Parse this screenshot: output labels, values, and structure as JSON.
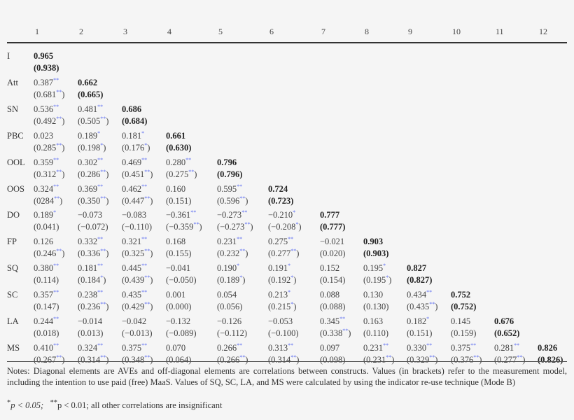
{
  "table": {
    "columns": [
      "1",
      "2",
      "3",
      "4",
      "5",
      "6",
      "7",
      "8",
      "9",
      "10",
      "11",
      "12"
    ],
    "rows": [
      {
        "label": "I",
        "cells": [
          [
            "0.965",
            "",
            "(0.938)",
            ""
          ]
        ]
      },
      {
        "label": "Att",
        "cells": [
          [
            "0.387",
            "**",
            "(0.681",
            "**"
          ],
          [
            "0.662",
            "",
            "(0.665)",
            ""
          ]
        ]
      },
      {
        "label": "SN",
        "cells": [
          [
            "0.536",
            "**",
            "(0.492",
            "**"
          ],
          [
            "0.481",
            "**",
            "(0.505",
            "**"
          ],
          [
            "0.686",
            "",
            "(0.684)",
            ""
          ]
        ]
      },
      {
        "label": "PBC",
        "cells": [
          [
            "0.023",
            "",
            "(0.285",
            "**"
          ],
          [
            "0.189",
            "*",
            "(0.198",
            "*"
          ],
          [
            "0.181",
            "*",
            "(0.176",
            "*"
          ],
          [
            "0.661",
            "",
            "(0.630)",
            ""
          ]
        ]
      },
      {
        "label": "OOL",
        "cells": [
          [
            "0.359",
            "**",
            "(0.312",
            "**"
          ],
          [
            "0.302",
            "**",
            "(0.286",
            "**"
          ],
          [
            "0.469",
            "**",
            "(0.451",
            "**"
          ],
          [
            "0.280",
            "**",
            "(0.275",
            "**"
          ],
          [
            "0.796",
            "",
            "(0.796)",
            ""
          ]
        ]
      },
      {
        "label": "OOS",
        "cells": [
          [
            "0.324",
            "**",
            "(0284",
            "**"
          ],
          [
            "0.369",
            "**",
            "(0.350",
            "**"
          ],
          [
            "0.462",
            "**",
            "(0.447",
            "**"
          ],
          [
            "0.160",
            "",
            "(0.151)",
            ""
          ],
          [
            "0.595",
            "**",
            "(0.596",
            "**"
          ],
          [
            "0.724",
            "",
            "(0.723)",
            ""
          ]
        ]
      },
      {
        "label": "DO",
        "cells": [
          [
            "0.189",
            "*",
            "(0.041)",
            ""
          ],
          [
            "−0.073",
            "",
            "(−0.072)",
            ""
          ],
          [
            "−0.083",
            "",
            "(−0.110)",
            ""
          ],
          [
            "−0.361",
            "**",
            "(−0.359",
            "**"
          ],
          [
            "−0.273",
            "**",
            "(−0.273",
            "**"
          ],
          [
            "−0.210",
            "*",
            "(−0.208",
            "*"
          ],
          [
            "0.777",
            "",
            "(0.777)",
            ""
          ]
        ]
      },
      {
        "label": "FP",
        "cells": [
          [
            "0.126",
            "",
            "(0.246",
            "**"
          ],
          [
            "0.332",
            "**",
            "(0.336",
            "**"
          ],
          [
            "0.321",
            "**",
            "(0.325",
            "**"
          ],
          [
            "0.168",
            "",
            "(0.155)",
            ""
          ],
          [
            "0.231",
            "**",
            "(0.232",
            "**"
          ],
          [
            "0.275",
            "**",
            "(0.277",
            "**"
          ],
          [
            "−0.021",
            "",
            "(0.020)",
            ""
          ],
          [
            "0.903",
            "",
            "(0.903)",
            ""
          ]
        ]
      },
      {
        "label": "SQ",
        "cells": [
          [
            "0.380",
            "**",
            "(0.114)",
            ""
          ],
          [
            "0.181",
            "**",
            "(0.184",
            "*"
          ],
          [
            "0.445",
            "**",
            "(0.439",
            "**"
          ],
          [
            "−0.041",
            "",
            "(−0.050)",
            ""
          ],
          [
            "0.190",
            "*",
            "(0.189",
            "*"
          ],
          [
            "0.191",
            "*",
            "(0.192",
            "*"
          ],
          [
            "0.152",
            "",
            "(0.154)",
            ""
          ],
          [
            "0.195",
            "*",
            "(0.195",
            "*"
          ],
          [
            "0.827",
            "",
            "(0.827)",
            ""
          ]
        ]
      },
      {
        "label": "SC",
        "cells": [
          [
            "0.357",
            "**",
            "(0.147)",
            ""
          ],
          [
            "0.238",
            "**",
            "(0.236",
            "**"
          ],
          [
            "0.435",
            "**",
            "(0.429",
            "**"
          ],
          [
            "0.001",
            "",
            "(0.000)",
            ""
          ],
          [
            "0.054",
            "",
            "(0.056)",
            ""
          ],
          [
            "0.213",
            "*",
            "(0.215",
            "*"
          ],
          [
            "0.088",
            "",
            "(0.088)",
            ""
          ],
          [
            "0.130",
            "",
            "(0.130)",
            ""
          ],
          [
            "0.434",
            "**",
            "(0.435",
            "**"
          ],
          [
            "0.752",
            "",
            "(0.752)",
            ""
          ]
        ]
      },
      {
        "label": "LA",
        "cells": [
          [
            "0.244",
            "**",
            "(0.018)",
            ""
          ],
          [
            "−0.014",
            "",
            "(0.013)",
            ""
          ],
          [
            "−0.042",
            "",
            "(−0.013)",
            ""
          ],
          [
            "−0.132",
            "",
            "(−0.089)",
            ""
          ],
          [
            "−0.126",
            "",
            "(−0.112)",
            ""
          ],
          [
            "−0.053",
            "",
            "(−0.100)",
            ""
          ],
          [
            "0.345",
            "**",
            "(0.338",
            "**"
          ],
          [
            "0.163",
            "",
            "(0.110)",
            ""
          ],
          [
            "0.182",
            "*",
            "(0.151)",
            ""
          ],
          [
            "0.145",
            "",
            "(0.159)",
            ""
          ],
          [
            "0.676",
            "",
            "(0.652)",
            ""
          ]
        ]
      },
      {
        "label": "MS",
        "cells": [
          [
            "0.410",
            "**",
            "(0.267",
            "**"
          ],
          [
            "0.324",
            "**",
            "(0.314",
            "**"
          ],
          [
            "0.375",
            "**",
            "(0.348",
            "**"
          ],
          [
            "0.070",
            "",
            "(0.064)",
            ""
          ],
          [
            "0.266",
            "**",
            "(0.266",
            "**"
          ],
          [
            "0.313",
            "**",
            "(0.314",
            "**"
          ],
          [
            "0.097",
            "",
            "(0.098)",
            ""
          ],
          [
            "0.231",
            "**",
            "(0.231",
            "**"
          ],
          [
            "0.330",
            "**",
            "(0.329",
            "**"
          ],
          [
            "0.375",
            "**",
            "(0.376",
            "**"
          ],
          [
            "0.281",
            "**",
            "(0.277",
            "**"
          ],
          [
            "0.826",
            "",
            "(0.826)",
            ""
          ]
        ]
      }
    ]
  },
  "notes": "Notes: Diagonal elements are AVEs and off-diagonal elements are correlations between constructs. Values (in brackets) refer to the measurement model, including the intention to use paid (free) MaaS. Values of SQ, SC, LA, and MS were calculated by using the indicator re-use technique (Mode B)",
  "footnote": {
    "p1_mark": "*",
    "p1": "p < 0.05;",
    "p2_mark": "**",
    "p2": "p < 0.01; all other correlations are insignificant"
  },
  "colors": {
    "background": "#f5f5f5",
    "significance_marker": "#5a6bf0",
    "text": "#333333"
  }
}
